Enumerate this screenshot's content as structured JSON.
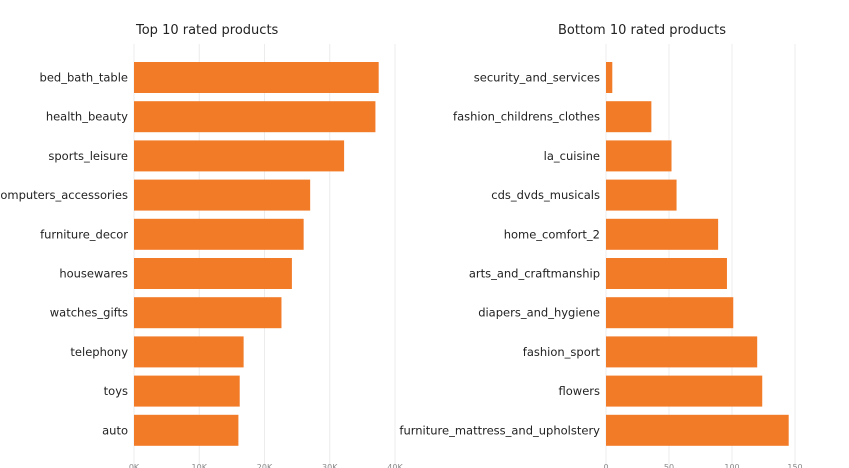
{
  "colors": {
    "bar": "#f27b28",
    "grid": "#ececec",
    "text": "#222222",
    "tick": "#888888"
  },
  "chart_data": [
    {
      "type": "bar",
      "orientation": "horizontal",
      "title": "Top 10 rated products",
      "categories": [
        "bed_bath_table",
        "health_beauty",
        "sports_leisure",
        "computers_accessories",
        "furniture_decor",
        "housewares",
        "watches_gifts",
        "telephony",
        "toys",
        "auto"
      ],
      "values": [
        37500,
        37000,
        32200,
        27000,
        26000,
        24200,
        22600,
        16800,
        16200,
        16000
      ],
      "xlim": [
        0,
        40000
      ],
      "xticks": [
        0,
        10000,
        20000,
        30000,
        40000
      ],
      "xtick_labels": [
        "0K",
        "10K",
        "20K",
        "30K",
        "40K"
      ],
      "grid": true
    },
    {
      "type": "bar",
      "orientation": "horizontal",
      "title": "Bottom 10 rated products",
      "categories": [
        "security_and_services",
        "fashion_childrens_clothes",
        "la_cuisine",
        "cds_dvds_musicals",
        "home_comfort_2",
        "arts_and_craftmanship",
        "diapers_and_hygiene",
        "fashion_sport",
        "flowers",
        "furniture_mattress_and_upholstery"
      ],
      "values": [
        5,
        36,
        52,
        56,
        89,
        96,
        101,
        120,
        124,
        145
      ],
      "xlim": [
        0,
        150
      ],
      "xticks": [
        0,
        50,
        100,
        150
      ],
      "xtick_labels": [
        "0",
        "50",
        "100",
        "150"
      ],
      "grid": true
    }
  ]
}
